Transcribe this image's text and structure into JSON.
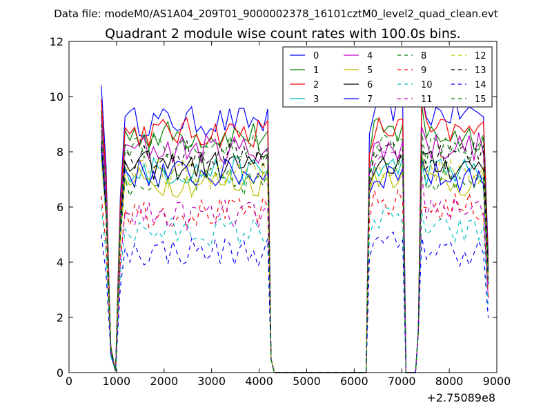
{
  "chart_data": {
    "type": "line",
    "suptitle": "Data file: modeM0/AS1A04_209T01_9000002378_16101cztM0_level2_quad_clean.evt",
    "title": "Quadrant 2 module wise count rates with 100.0s bins.",
    "xlabel": "",
    "ylabel": "",
    "x_offset_label": "+2.75089e8",
    "xlim": [
      0,
      9000
    ],
    "ylim": [
      0,
      12
    ],
    "xticks": [
      0,
      1000,
      2000,
      3000,
      4000,
      5000,
      6000,
      7000,
      8000,
      9000
    ],
    "yticks": [
      0,
      2,
      4,
      6,
      8,
      10,
      12
    ],
    "grid": false,
    "legend": {
      "placement": "top-right",
      "columns": 4
    },
    "gaps": [
      {
        "x_start": 4250,
        "x_end": 6250,
        "value": 0
      },
      {
        "x_start": 7100,
        "x_end": 7300,
        "value": 0
      }
    ],
    "series": [
      {
        "name": "0",
        "color": "#0000ff",
        "dash": "solid",
        "baseline": 9.1,
        "start": 10.4,
        "peak2": 9.8,
        "peak3": 10.1,
        "segB": 9.6,
        "segC": 9.4
      },
      {
        "name": "1",
        "color": "#008000",
        "dash": "solid",
        "baseline": 8.6,
        "start": 9.5,
        "peak2": 9.0,
        "peak3": 9.7,
        "segB": 8.7,
        "segC": 8.6
      },
      {
        "name": "2",
        "color": "#ff0000",
        "dash": "solid",
        "baseline": 8.7,
        "start": 9.9,
        "peak2": 9.2,
        "peak3": 10.0,
        "segB": 8.8,
        "segC": 8.7
      },
      {
        "name": "3",
        "color": "#00bfbf",
        "dash": "solid",
        "baseline": 7.3,
        "start": 7.9,
        "peak2": 7.8,
        "peak3": 7.6,
        "segB": 7.4,
        "segC": 7.3
      },
      {
        "name": "4",
        "color": "#bf00bf",
        "dash": "solid",
        "baseline": 8.1,
        "start": 9.3,
        "peak2": 8.4,
        "peak3": 8.9,
        "segB": 8.1,
        "segC": 8.2
      },
      {
        "name": "5",
        "color": "#bfbf00",
        "dash": "solid",
        "baseline": 6.9,
        "start": 8.3,
        "peak2": 7.3,
        "peak3": 7.9,
        "segB": 7.2,
        "segC": 6.9
      },
      {
        "name": "6",
        "color": "#000000",
        "dash": "solid",
        "baseline": 7.5,
        "start": 8.4,
        "peak2": 7.9,
        "peak3": 8.0,
        "segB": 7.6,
        "segC": 7.5
      },
      {
        "name": "7",
        "color": "#0000ff",
        "dash": "solid",
        "baseline": 7.2,
        "start": 8.2,
        "peak2": 7.4,
        "peak3": 7.7,
        "segB": 7.2,
        "segC": 7.1
      },
      {
        "name": "8",
        "color": "#008000",
        "dash": "dashed",
        "baseline": 6.9,
        "start": 8.8,
        "peak2": 7.9,
        "peak3": 8.1,
        "segB": 7.7,
        "segC": 7.1
      },
      {
        "name": "9",
        "color": "#ff0000",
        "dash": "dashed",
        "baseline": 5.8,
        "start": 6.4,
        "peak2": 6.2,
        "peak3": 6.0,
        "segB": 6.1,
        "segC": 6.0
      },
      {
        "name": "10",
        "color": "#00bfbf",
        "dash": "dashed",
        "baseline": 5.1,
        "start": 6.0,
        "peak2": 5.4,
        "peak3": 5.8,
        "segB": 5.5,
        "segC": 5.1
      },
      {
        "name": "11",
        "color": "#bf00bf",
        "dash": "dashed",
        "baseline": 5.7,
        "start": 8.6,
        "peak2": 7.8,
        "peak3": 7.2,
        "segB": 7.5,
        "segC": 6.0
      },
      {
        "name": "12",
        "color": "#bfbf00",
        "dash": "dashed",
        "baseline": 7.2,
        "start": 7.7,
        "peak2": 7.5,
        "peak3": 7.6,
        "segB": 7.4,
        "segC": 7.4
      },
      {
        "name": "13",
        "color": "#000000",
        "dash": "dashed",
        "baseline": 7.9,
        "start": 8.1,
        "peak2": 8.1,
        "peak3": 8.3,
        "segB": 8.0,
        "segC": 7.9
      },
      {
        "name": "14",
        "color": "#0000ff",
        "dash": "dashed",
        "baseline": 4.4,
        "start": 5.0,
        "peak2": 4.8,
        "peak3": 4.9,
        "segB": 4.6,
        "segC": 4.4
      },
      {
        "name": "15",
        "color": "#008000",
        "dash": "dashed",
        "baseline": 8.1,
        "start": 9.0,
        "peak2": 8.4,
        "peak3": 8.7,
        "segB": 8.3,
        "segC": 8.1
      }
    ]
  }
}
